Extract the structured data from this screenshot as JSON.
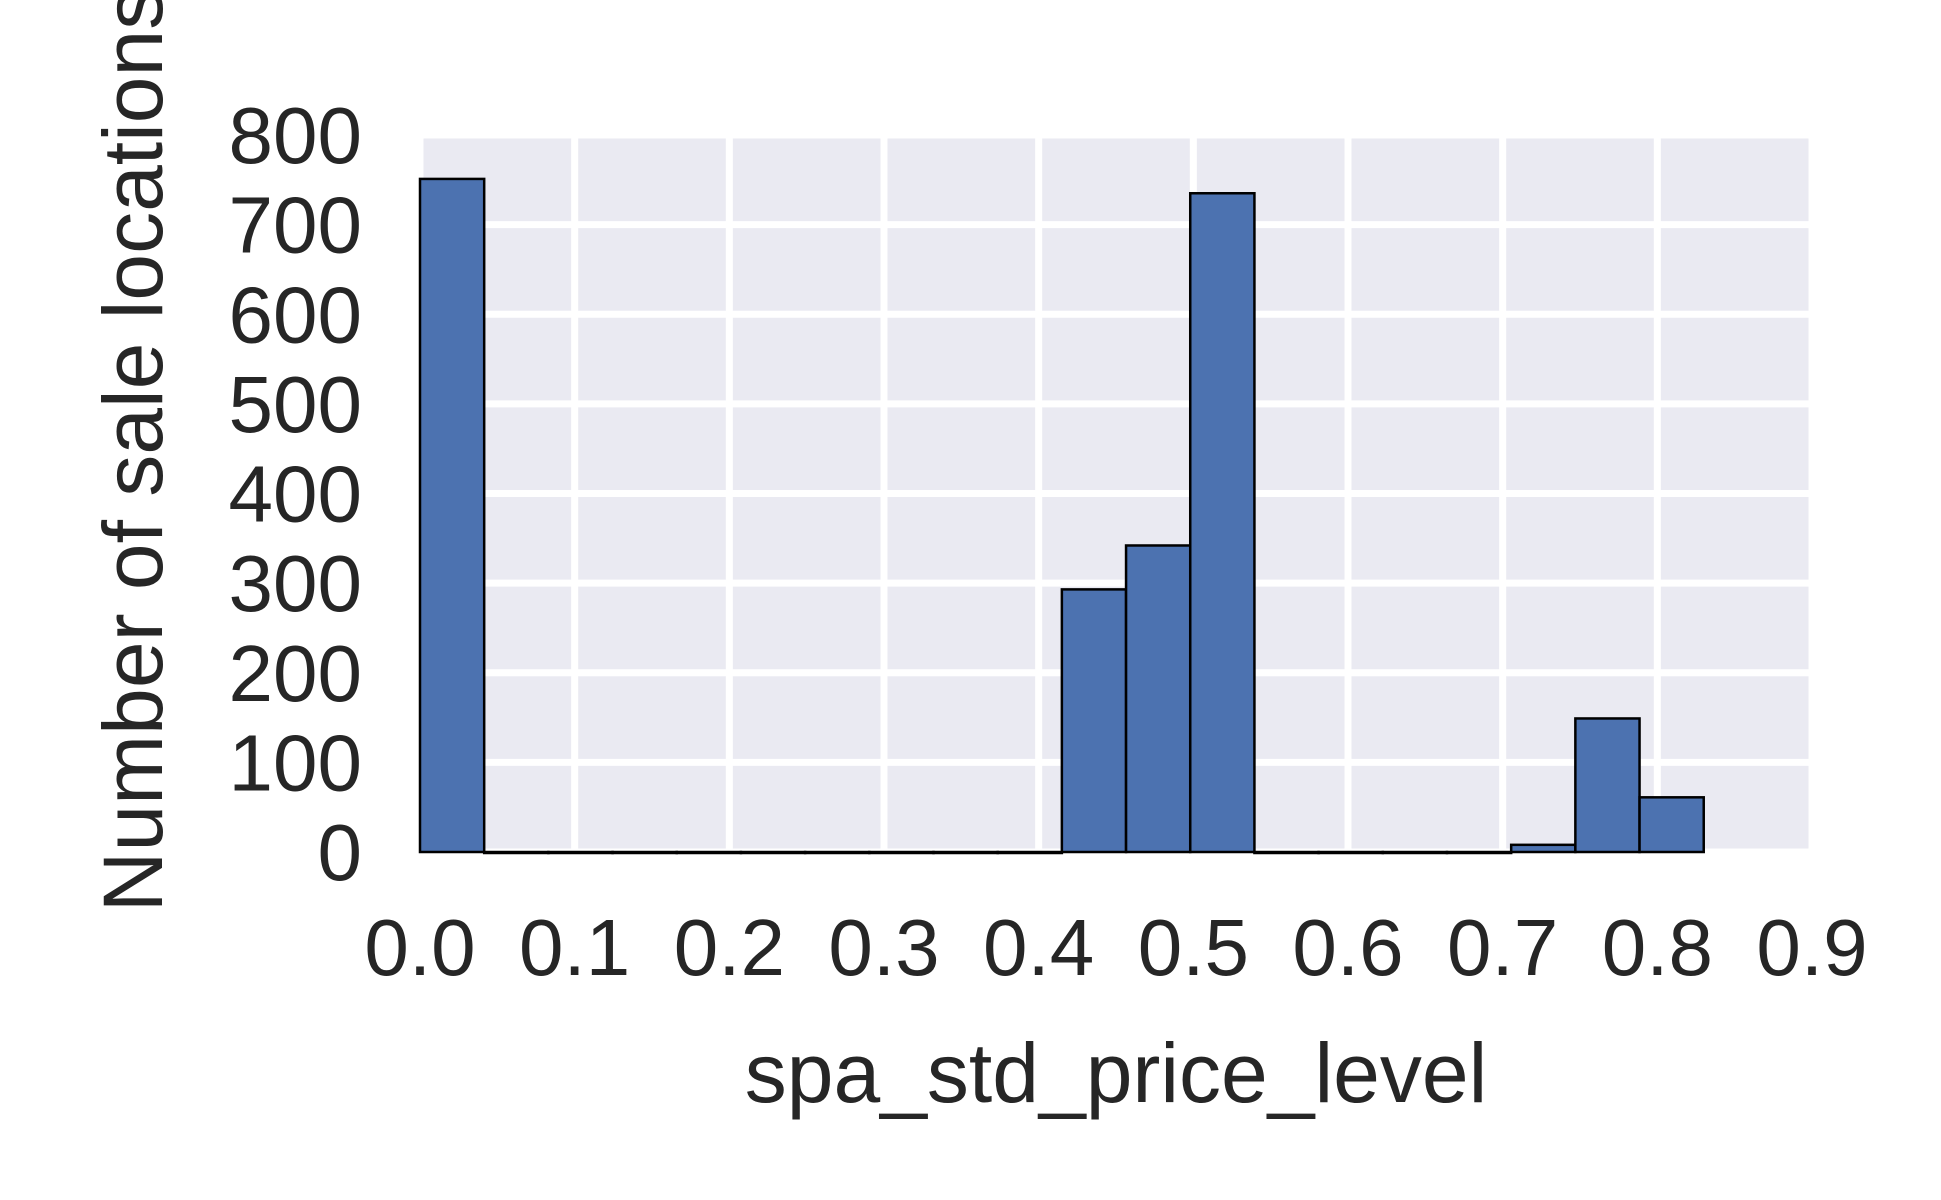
{
  "chart_data": {
    "type": "bar",
    "subtype": "histogram",
    "title": "",
    "xlabel": "spa_std_price_level",
    "ylabel": "Number of sale locations",
    "xlim": [
      0.0,
      0.9
    ],
    "ylim": [
      0,
      800
    ],
    "x_ticks": [
      "0.0",
      "0.1",
      "0.2",
      "0.3",
      "0.4",
      "0.5",
      "0.6",
      "0.7",
      "0.8",
      "0.9"
    ],
    "y_ticks": [
      "0",
      "100",
      "200",
      "300",
      "400",
      "500",
      "600",
      "700",
      "800"
    ],
    "grid": true,
    "legend": "none",
    "bar_color": "#4c72b0",
    "edge_color": "#000000",
    "background_color": "#eaeaf2",
    "bins": [
      {
        "x0": 0.0,
        "x1": 0.0415,
        "count": 751
      },
      {
        "x0": 0.0415,
        "x1": 0.083,
        "count": 0
      },
      {
        "x0": 0.083,
        "x1": 0.1245,
        "count": 0
      },
      {
        "x0": 0.1245,
        "x1": 0.166,
        "count": 0
      },
      {
        "x0": 0.166,
        "x1": 0.2075,
        "count": 0
      },
      {
        "x0": 0.2075,
        "x1": 0.249,
        "count": 0
      },
      {
        "x0": 0.249,
        "x1": 0.2905,
        "count": 0
      },
      {
        "x0": 0.2905,
        "x1": 0.332,
        "count": 0
      },
      {
        "x0": 0.332,
        "x1": 0.3735,
        "count": 0
      },
      {
        "x0": 0.3735,
        "x1": 0.415,
        "count": 0
      },
      {
        "x0": 0.415,
        "x1": 0.4565,
        "count": 293
      },
      {
        "x0": 0.4565,
        "x1": 0.498,
        "count": 342
      },
      {
        "x0": 0.498,
        "x1": 0.5395,
        "count": 735
      },
      {
        "x0": 0.5395,
        "x1": 0.581,
        "count": 0
      },
      {
        "x0": 0.581,
        "x1": 0.6225,
        "count": 0
      },
      {
        "x0": 0.6225,
        "x1": 0.664,
        "count": 0
      },
      {
        "x0": 0.664,
        "x1": 0.7055,
        "count": 0
      },
      {
        "x0": 0.7055,
        "x1": 0.747,
        "count": 8
      },
      {
        "x0": 0.747,
        "x1": 0.7885,
        "count": 149
      },
      {
        "x0": 0.7885,
        "x1": 0.83,
        "count": 61
      }
    ]
  }
}
